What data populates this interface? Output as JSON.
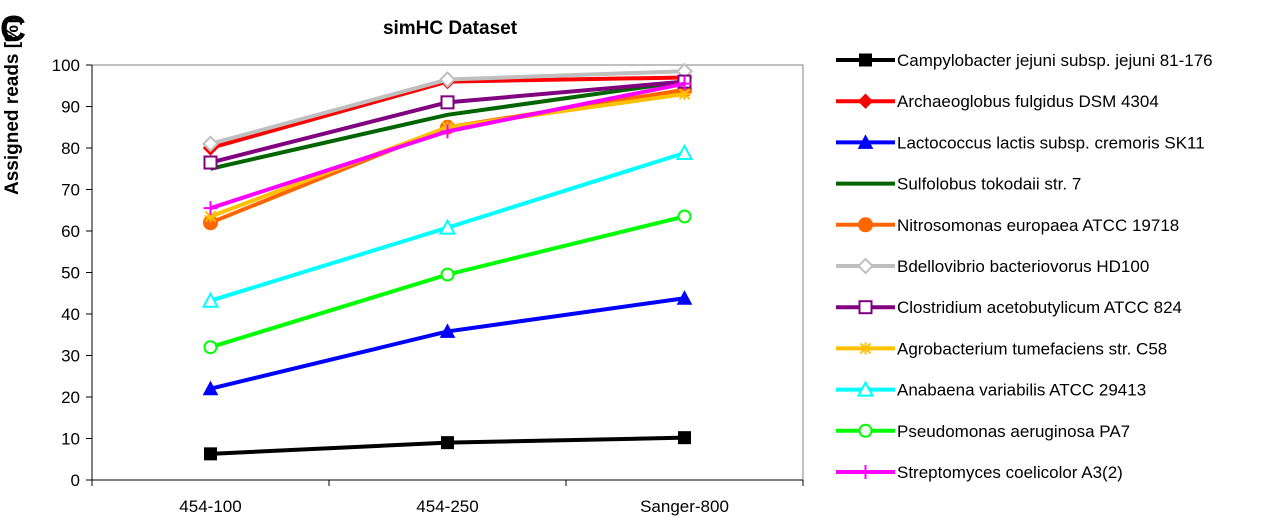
{
  "panel_letter": "C",
  "chart_data": {
    "type": "line",
    "title": "simHC Dataset",
    "xlabel": "",
    "ylabel": "Assigned reads [%]",
    "categories": [
      "454-100",
      "454-250",
      "Sanger-800"
    ],
    "ylim": [
      0,
      100
    ],
    "yticks": [
      0,
      10,
      20,
      30,
      40,
      50,
      60,
      70,
      80,
      90,
      100
    ],
    "grid": false,
    "legend_position": "right",
    "series": [
      {
        "name": "Campylobacter jejuni subsp. jejuni 81-176",
        "values": [
          6.3,
          9.0,
          10.2
        ],
        "color": "#000000",
        "marker": "square-filled"
      },
      {
        "name": "Archaeoglobus fulgidus DSM 4304",
        "values": [
          80.0,
          96.0,
          97.0
        ],
        "color": "#ff0000",
        "marker": "diamond-filled"
      },
      {
        "name": "Lactococcus lactis subsp. cremoris SK11",
        "values": [
          22.0,
          35.8,
          43.8
        ],
        "color": "#0000ff",
        "marker": "triangle-filled"
      },
      {
        "name": "Sulfolobus tokodaii str. 7",
        "values": [
          75.0,
          88.0,
          96.0
        ],
        "color": "#006400",
        "marker": "none"
      },
      {
        "name": "Nitrosomonas europaea ATCC 19718",
        "values": [
          62.0,
          85.0,
          94.0
        ],
        "color": "#ff6600",
        "marker": "circle-filled"
      },
      {
        "name": "Bdellovibrio bacteriovorus HD100",
        "values": [
          81.0,
          96.5,
          98.5
        ],
        "color": "#bfbfbf",
        "marker": "diamond-open"
      },
      {
        "name": "Clostridium acetobutylicum ATCC 824",
        "values": [
          76.5,
          91.0,
          96.0
        ],
        "color": "#800080",
        "marker": "square-open"
      },
      {
        "name": "Agrobacterium tumefaciens str. C58",
        "values": [
          63.5,
          85.0,
          93.0
        ],
        "color": "#ffc000",
        "marker": "asterisk"
      },
      {
        "name": "Anabaena variabilis ATCC 29413",
        "values": [
          43.2,
          60.8,
          78.8
        ],
        "color": "#00ffff",
        "marker": "triangle-open"
      },
      {
        "name": "Pseudomonas aeruginosa PA7",
        "values": [
          32.0,
          49.5,
          63.5
        ],
        "color": "#00ff00",
        "marker": "circle-open"
      },
      {
        "name": "Streptomyces coelicolor A3(2)",
        "values": [
          65.5,
          84.0,
          95.5
        ],
        "color": "#ff00ff",
        "marker": "plus"
      }
    ]
  }
}
